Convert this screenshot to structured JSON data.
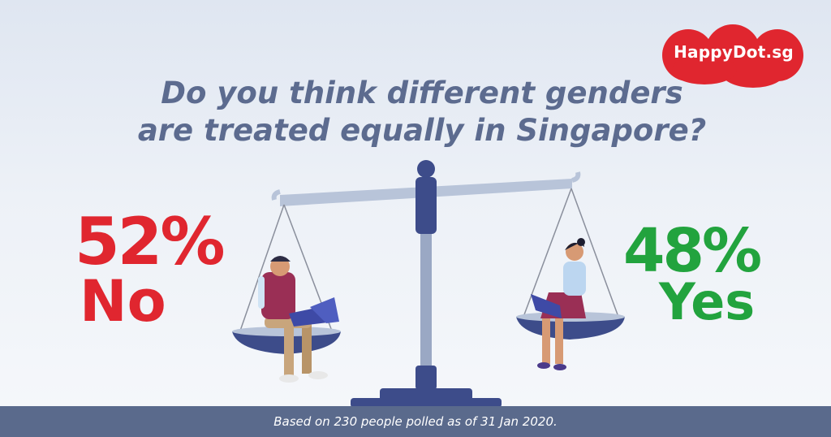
{
  "brand": {
    "logo_text": "HappyDot.sg",
    "color": "#e0262f"
  },
  "question": {
    "line1": "Do you think different genders",
    "line2": "are treated equally in Singapore?",
    "color": "#5c6b8f"
  },
  "results": {
    "no": {
      "percent_text": "52%",
      "label": "No",
      "value": 52,
      "color": "#e0262f"
    },
    "yes": {
      "percent_text": "48%",
      "label": "Yes",
      "value": 48,
      "color": "#22a33e"
    }
  },
  "illustration": {
    "scale_icon": "balance-scale-icon",
    "left_figure": "man-with-laptop-icon",
    "right_figure": "woman-with-laptop-icon"
  },
  "footer": {
    "note": "Based on 230 people polled as of 31 Jan 2020.",
    "background": "#5a6a8c"
  }
}
